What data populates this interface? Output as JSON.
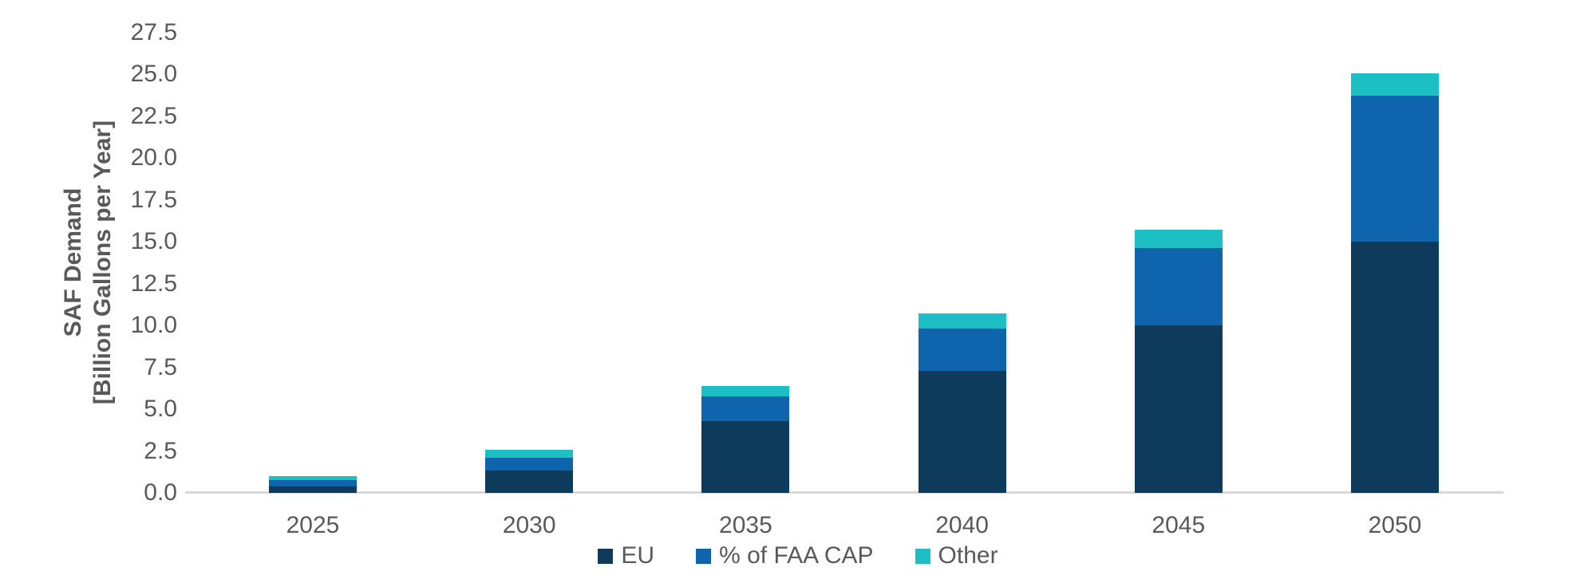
{
  "chart_data": {
    "type": "bar",
    "stacked": true,
    "title": "",
    "categories": [
      "2025",
      "2030",
      "2035",
      "2040",
      "2045",
      "2050"
    ],
    "series": [
      {
        "name": "EU",
        "color": "#0E3A5C",
        "values": [
          0.4,
          1.35,
          4.3,
          7.3,
          10.0,
          15.0
        ]
      },
      {
        "name": "% of FAA CAP",
        "color": "#0E64AD",
        "values": [
          0.35,
          0.75,
          1.45,
          2.5,
          4.6,
          8.7
        ]
      },
      {
        "name": "Other",
        "color": "#1BBFC4",
        "values": [
          0.25,
          0.45,
          0.65,
          0.9,
          1.1,
          1.35
        ]
      }
    ],
    "totals": [
      1.0,
      2.55,
      6.4,
      10.7,
      15.7,
      25.05
    ],
    "ylabel_line1": "SAF Demand",
    "ylabel_line2": "[Billion Gallons per Year]",
    "xlabel": "",
    "ylim": [
      0,
      27.5
    ],
    "ytick_step": 2.5,
    "ytick_decimals": 1,
    "grid": false,
    "legend_position": "bottom",
    "legend_labels": [
      "EU",
      "% of FAA CAP",
      "Other"
    ],
    "axis_text_color": "#595959",
    "axis_line_color": "#D8D8D8"
  }
}
